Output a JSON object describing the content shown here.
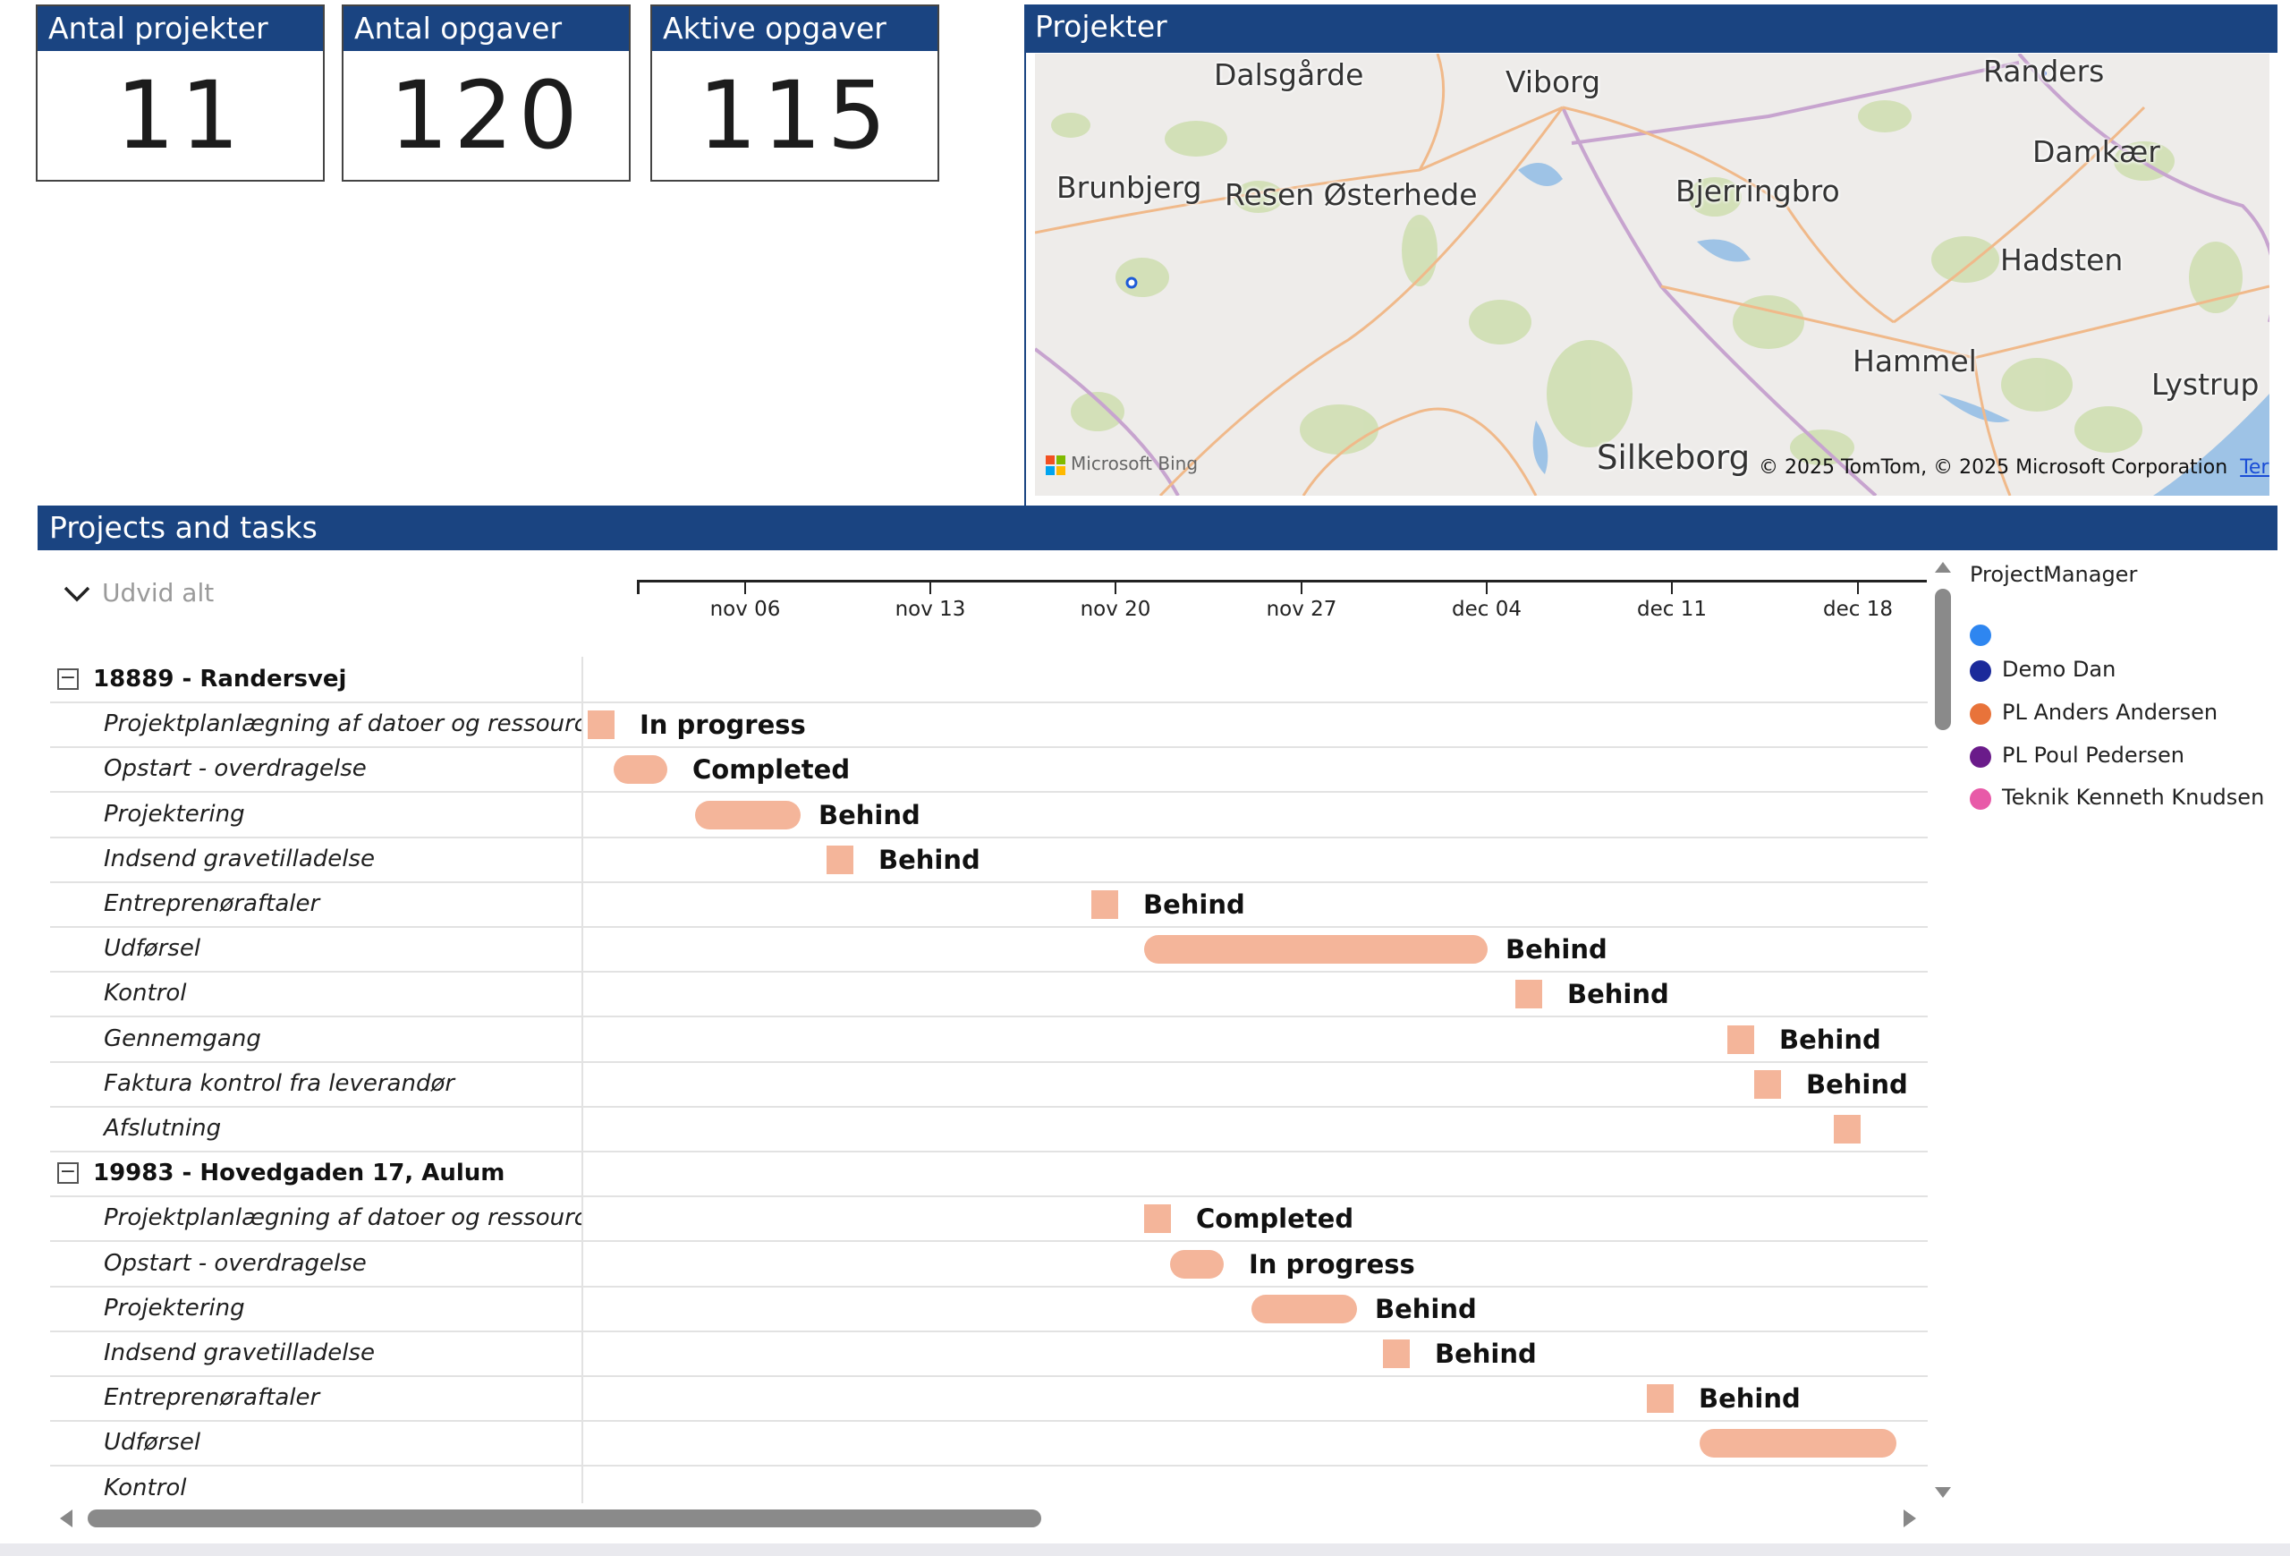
{
  "kpis": [
    {
      "label": "Antal projekter",
      "value": "11"
    },
    {
      "label": "Antal opgaver",
      "value": "120"
    },
    {
      "label": "Aktive opgaver",
      "value": "115"
    }
  ],
  "map": {
    "title": "Projekter",
    "places": [
      "Dalsgårde",
      "Viborg",
      "Randers",
      "Brunbjerg",
      "Resen Østerhede",
      "Bjerringbro",
      "Damkær",
      "Hadsten",
      "Hammel",
      "Lystrup",
      "Silkeborg"
    ],
    "attribution": "© 2025 TomTom, © 2025 Microsoft Corporation",
    "terms": "Terms",
    "logo": "Microsoft Bing"
  },
  "gantt": {
    "title": "Projects and tasks",
    "expand_label": "Udvid alt",
    "axis_ticks": [
      "nov 06",
      "nov 13",
      "nov 20",
      "nov 27",
      "dec 04",
      "dec 11",
      "dec 18"
    ],
    "rows": [
      {
        "type": "project",
        "name": "18889 - Randersvej"
      },
      {
        "type": "task",
        "name": "Projektplanlægning af datoer og ressourcer",
        "status": "In progress"
      },
      {
        "type": "task",
        "name": "Opstart - overdragelse",
        "status": "Completed"
      },
      {
        "type": "task",
        "name": "Projektering",
        "status": "Behind"
      },
      {
        "type": "task",
        "name": "Indsend gravetilladelse",
        "status": "Behind"
      },
      {
        "type": "task",
        "name": "Entreprenøraftaler",
        "status": "Behind"
      },
      {
        "type": "task",
        "name": "Udførsel",
        "status": "Behind"
      },
      {
        "type": "task",
        "name": "Kontrol",
        "status": "Behind"
      },
      {
        "type": "task",
        "name": "Gennemgang",
        "status": "Behind"
      },
      {
        "type": "task",
        "name": "Faktura kontrol fra leverandør",
        "status": "Behind"
      },
      {
        "type": "task",
        "name": "Afslutning",
        "status": ""
      },
      {
        "type": "project",
        "name": "19983 - Hovedgaden 17, Aulum"
      },
      {
        "type": "task",
        "name": "Projektplanlægning af datoer og ressourcer",
        "status": "Completed"
      },
      {
        "type": "task",
        "name": "Opstart - overdragelse",
        "status": "In progress"
      },
      {
        "type": "task",
        "name": "Projektering",
        "status": "Behind"
      },
      {
        "type": "task",
        "name": "Indsend gravetilladelse",
        "status": "Behind"
      },
      {
        "type": "task",
        "name": "Entreprenøraftaler",
        "status": "Behind"
      },
      {
        "type": "task",
        "name": "Udførsel",
        "status": ""
      },
      {
        "type": "task",
        "name": "Kontrol",
        "status": ""
      }
    ],
    "bar_color": "#f4b59a"
  },
  "legend": {
    "title": "ProjectManager",
    "items": [
      {
        "label": "",
        "color": "#2e86f0"
      },
      {
        "label": "Demo Dan",
        "color": "#1b2a9a"
      },
      {
        "label": "PL Anders Andersen",
        "color": "#e8733a"
      },
      {
        "label": "PL Poul Pedersen",
        "color": "#6a1b8a"
      },
      {
        "label": "Teknik Kenneth Knudsen",
        "color": "#e85aa8"
      }
    ]
  },
  "colors": {
    "header": "#1a4481",
    "bar": "#f4b59a"
  }
}
